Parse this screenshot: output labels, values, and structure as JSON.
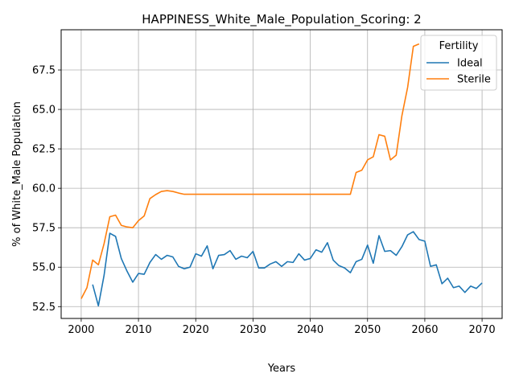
{
  "chart_data": {
    "type": "line",
    "title": "HAPPINESS_White_Male_Population_Scoring: 2",
    "xlabel": "Years",
    "ylabel": "% of White_Male Population",
    "xlim": [
      1996.5,
      2073.5
    ],
    "ylim": [
      51.75,
      70.05
    ],
    "x_ticks": [
      2000,
      2010,
      2020,
      2030,
      2040,
      2050,
      2060,
      2070
    ],
    "y_ticks": [
      52.5,
      55.0,
      57.5,
      60.0,
      62.5,
      65.0,
      67.5
    ],
    "x_tick_labels": [
      "2000",
      "2010",
      "2020",
      "2030",
      "2040",
      "2050",
      "2060",
      "2070"
    ],
    "y_tick_labels": [
      "52.5",
      "55.0",
      "57.5",
      "60.0",
      "62.5",
      "65.0",
      "67.5"
    ],
    "grid": true,
    "legend": {
      "title": "Fertility",
      "position": "top-right"
    },
    "series": [
      {
        "name": "Ideal",
        "color": "#1f77b4",
        "x": [
          2002,
          2003,
          2004,
          2005,
          2006,
          2007,
          2008,
          2009,
          2010,
          2011,
          2012,
          2013,
          2014,
          2015,
          2016,
          2017,
          2018,
          2019,
          2020,
          2021,
          2022,
          2023,
          2024,
          2025,
          2026,
          2027,
          2028,
          2029,
          2030,
          2031,
          2032,
          2033,
          2034,
          2035,
          2036,
          2037,
          2038,
          2039,
          2040,
          2041,
          2042,
          2043,
          2044,
          2045,
          2046,
          2047,
          2048,
          2049,
          2050,
          2051,
          2052,
          2053,
          2054,
          2055,
          2056,
          2057,
          2058,
          2059,
          2060,
          2061,
          2062,
          2063,
          2064,
          2065,
          2066,
          2067,
          2068,
          2069,
          2070
        ],
        "y": [
          53.9,
          52.55,
          54.5,
          57.15,
          56.95,
          55.55,
          54.75,
          54.05,
          54.6,
          54.55,
          55.3,
          55.8,
          55.5,
          55.75,
          55.65,
          55.05,
          54.9,
          55.0,
          55.85,
          55.7,
          56.35,
          54.9,
          55.75,
          55.8,
          56.05,
          55.5,
          55.7,
          55.6,
          56.0,
          54.95,
          54.95,
          55.2,
          55.35,
          55.05,
          55.35,
          55.3,
          55.85,
          55.45,
          55.55,
          56.1,
          55.95,
          56.55,
          55.45,
          55.1,
          54.95,
          54.65,
          55.35,
          55.5,
          56.4,
          55.25,
          57.0,
          56.0,
          56.05,
          55.75,
          56.3,
          57.05,
          57.25,
          56.75,
          56.65,
          55.05,
          55.15,
          53.95,
          54.3,
          53.7,
          53.8,
          53.4,
          53.8,
          53.65,
          54.0
        ]
      },
      {
        "name": "Sterile",
        "color": "#ff7f0e",
        "x": [
          2000,
          2001,
          2002,
          2003,
          2004,
          2005,
          2006,
          2007,
          2008,
          2009,
          2010,
          2011,
          2012,
          2013,
          2014,
          2015,
          2016,
          2017,
          2018,
          2019,
          2020,
          2021,
          2022,
          2023,
          2024,
          2025,
          2026,
          2027,
          2028,
          2029,
          2030,
          2031,
          2032,
          2033,
          2034,
          2035,
          2036,
          2037,
          2038,
          2039,
          2040,
          2041,
          2042,
          2043,
          2044,
          2045,
          2046,
          2047,
          2048,
          2049,
          2050,
          2051,
          2052,
          2053,
          2054,
          2055,
          2056,
          2057,
          2058,
          2059
        ],
        "y": [
          53.0,
          53.7,
          55.45,
          55.15,
          56.5,
          58.2,
          58.3,
          57.65,
          57.55,
          57.5,
          57.95,
          58.25,
          59.35,
          59.6,
          59.8,
          59.85,
          59.8,
          59.7,
          59.62,
          59.62,
          59.62,
          59.62,
          59.62,
          59.62,
          59.62,
          59.62,
          59.62,
          59.62,
          59.62,
          59.62,
          59.62,
          59.62,
          59.62,
          59.62,
          59.62,
          59.62,
          59.62,
          59.62,
          59.62,
          59.62,
          59.62,
          59.62,
          59.62,
          59.62,
          59.62,
          59.62,
          59.62,
          59.62,
          61.0,
          61.15,
          61.8,
          62.0,
          63.4,
          63.3,
          61.8,
          62.1,
          64.6,
          66.4,
          69.0,
          69.15
        ]
      }
    ]
  }
}
